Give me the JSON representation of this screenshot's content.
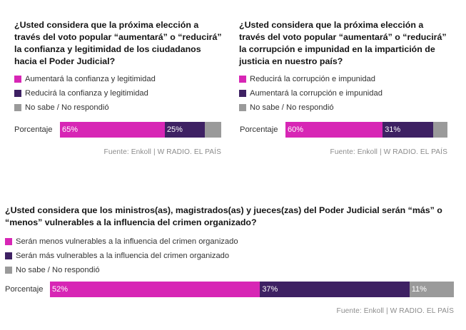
{
  "colors": {
    "magenta": "#d726b5",
    "purple": "#3e2163",
    "gray": "#9a9a9a"
  },
  "chart_data": [
    {
      "type": "bar",
      "stacked": true,
      "orientation": "horizontal",
      "title": "¿Usted considera que la próxima elección a través del voto popular “aumentará” o “reducirá” la confianza y legitimidad de los ciudadanos hacia el Poder Judicial?",
      "categories": [
        "Porcentaje"
      ],
      "series": [
        {
          "name": "Aumentará la confianza y legitimidad",
          "values": [
            65
          ],
          "label": "65%",
          "color": "#d726b5"
        },
        {
          "name": "Reducirá la confianza y legitimidad",
          "values": [
            25
          ],
          "label": "25%",
          "color": "#3e2163"
        },
        {
          "name": "No sabe / No respondió",
          "values": [
            10
          ],
          "label": "",
          "color": "#9a9a9a"
        }
      ],
      "source": "Fuente: Enkoll | W RADIO. EL PAÍS"
    },
    {
      "type": "bar",
      "stacked": true,
      "orientation": "horizontal",
      "title": "¿Usted considera que la próxima elección a través del voto popular “aumentará” o “reducirá” la corrupción e impunidad en la impartición de justicia en nuestro país?",
      "categories": [
        "Porcentaje"
      ],
      "series": [
        {
          "name": "Reducirá la corrupción e impunidad",
          "values": [
            60
          ],
          "label": "60%",
          "color": "#d726b5"
        },
        {
          "name": "Aumentará la corrupción e impunidad",
          "values": [
            31
          ],
          "label": "31%",
          "color": "#3e2163"
        },
        {
          "name": "No sabe / No respondió",
          "values": [
            9
          ],
          "label": "",
          "color": "#9a9a9a"
        }
      ],
      "source": "Fuente: Enkoll | W RADIO. EL PAÍS"
    },
    {
      "type": "bar",
      "stacked": true,
      "orientation": "horizontal",
      "title": "¿Usted considera que los ministros(as), magistrados(as) y jueces(zas) del Poder Judicial serán “más” o “menos” vulnerables a la influencia del crimen organizado?",
      "categories": [
        "Porcentaje"
      ],
      "series": [
        {
          "name": "Serán menos vulnerables a la influencia del crimen organizado",
          "values": [
            52
          ],
          "label": "52%",
          "color": "#d726b5"
        },
        {
          "name": "Serán más vulnerables a la influencia del crimen organizado",
          "values": [
            37
          ],
          "label": "37%",
          "color": "#3e2163"
        },
        {
          "name": "No sabe / No respondió",
          "values": [
            11
          ],
          "label": "11%",
          "color": "#9a9a9a"
        }
      ],
      "source": "Fuente: Enkoll | W RADIO. EL PAÍS"
    }
  ]
}
